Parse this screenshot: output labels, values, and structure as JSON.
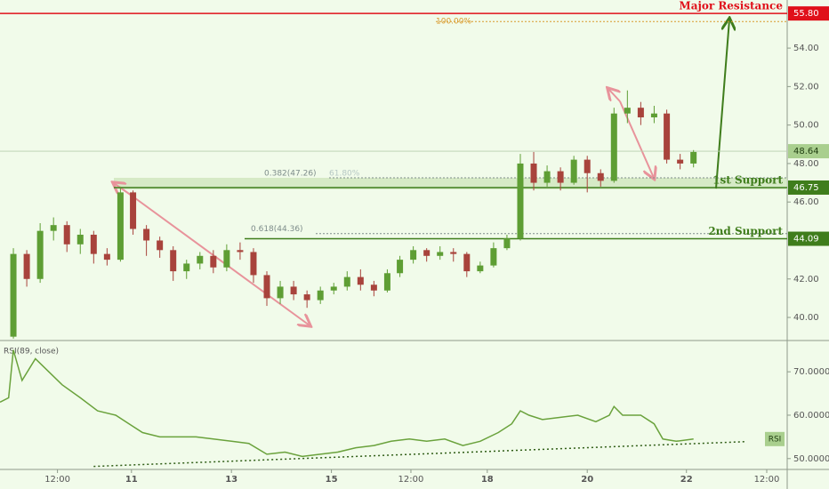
{
  "chart_data": {
    "type": "candlestick",
    "xlim": [
      0,
      100
    ],
    "xticks": [
      {
        "value": 7.3,
        "label": "12:00"
      },
      {
        "value": 16.7,
        "label": "11"
      },
      {
        "value": 29.4,
        "label": "13"
      },
      {
        "value": 42.1,
        "label": "15"
      },
      {
        "value": 52.2,
        "label": "12:00"
      },
      {
        "value": 61.9,
        "label": "18"
      },
      {
        "value": 74.6,
        "label": "20"
      },
      {
        "value": 87.2,
        "label": "22"
      },
      {
        "value": 97.4,
        "label": "12:00"
      }
    ],
    "ylim": [
      38.8,
      56.5
    ],
    "yticks": [
      {
        "value": 40,
        "label": "40.00"
      },
      {
        "value": 42,
        "label": "42.00"
      },
      {
        "value": 46,
        "label": "46.00"
      },
      {
        "value": 48,
        "label": "48.00"
      },
      {
        "value": 50,
        "label": "50.00"
      },
      {
        "value": 52,
        "label": "52.00"
      },
      {
        "value": 54,
        "label": "54.00"
      }
    ],
    "up_color": "#5e9e34",
    "down_color": "#a8433c",
    "candles": {
      "x": [
        1.7,
        3.4,
        5.1,
        6.8,
        8.5,
        10.2,
        11.9,
        13.6,
        15.3,
        16.9,
        18.6,
        20.3,
        22.0,
        23.7,
        25.4,
        27.1,
        28.8,
        30.5,
        32.2,
        33.9,
        35.6,
        37.3,
        39.0,
        40.7,
        42.4,
        44.1,
        45.8,
        47.5,
        49.2,
        50.8,
        52.5,
        54.2,
        55.9,
        57.6,
        59.3,
        61.0,
        62.7,
        64.4,
        66.1,
        67.8,
        69.5,
        71.2,
        72.9,
        74.6,
        76.3,
        78.0,
        79.7,
        81.4,
        83.1,
        84.7,
        86.4,
        88.1
      ],
      "open": [
        39.0,
        43.3,
        42.0,
        44.5,
        44.8,
        43.8,
        44.3,
        43.3,
        43.0,
        46.5,
        44.6,
        44.0,
        43.5,
        42.4,
        42.8,
        43.2,
        42.6,
        43.5,
        43.4,
        42.2,
        41.0,
        41.6,
        41.2,
        40.9,
        41.4,
        41.6,
        42.1,
        41.7,
        41.4,
        42.3,
        43.0,
        43.5,
        43.2,
        43.4,
        43.3,
        42.4,
        42.7,
        43.6,
        44.1,
        48.0,
        47.0,
        47.6,
        47.0,
        48.2,
        47.5,
        47.1,
        50.6,
        50.9,
        50.4,
        50.6,
        48.2,
        48.0
      ],
      "high": [
        43.6,
        43.5,
        44.9,
        45.2,
        45.0,
        44.6,
        44.5,
        43.6,
        46.8,
        46.6,
        44.8,
        44.2,
        43.7,
        43.0,
        43.4,
        43.5,
        43.8,
        43.9,
        43.6,
        42.4,
        41.9,
        41.9,
        41.4,
        41.6,
        41.8,
        42.4,
        42.5,
        41.9,
        42.5,
        43.2,
        43.7,
        43.6,
        43.7,
        43.6,
        43.4,
        42.9,
        43.9,
        44.3,
        48.5,
        48.6,
        47.9,
        47.8,
        48.4,
        48.4,
        47.7,
        50.9,
        51.8,
        51.2,
        51.0,
        50.8,
        48.5,
        48.7
      ],
      "low": [
        38.9,
        41.6,
        41.8,
        44.0,
        43.4,
        43.3,
        42.8,
        42.7,
        42.9,
        44.3,
        43.2,
        43.1,
        41.9,
        42.0,
        42.5,
        42.3,
        42.4,
        43.0,
        41.8,
        40.6,
        40.7,
        40.9,
        40.5,
        40.7,
        41.2,
        41.4,
        41.4,
        41.1,
        41.3,
        42.1,
        42.8,
        42.9,
        43.0,
        42.9,
        42.1,
        42.3,
        42.6,
        43.5,
        44.0,
        46.6,
        46.8,
        46.6,
        46.9,
        46.5,
        46.8,
        47.0,
        50.1,
        50.0,
        50.1,
        48.0,
        47.7,
        47.8
      ],
      "close": [
        43.3,
        42.0,
        44.5,
        44.8,
        43.8,
        44.3,
        43.3,
        43.0,
        46.5,
        44.6,
        44.0,
        43.5,
        42.4,
        42.8,
        43.2,
        42.6,
        43.5,
        43.4,
        42.2,
        41.0,
        41.6,
        41.2,
        40.9,
        41.4,
        41.6,
        42.1,
        41.7,
        41.4,
        42.3,
        43.0,
        43.5,
        43.2,
        43.4,
        43.3,
        42.4,
        42.7,
        43.6,
        44.1,
        48.0,
        47.0,
        47.6,
        47.0,
        48.2,
        47.5,
        47.1,
        50.6,
        50.9,
        50.4,
        50.6,
        48.2,
        48.0,
        48.6
      ]
    },
    "levels": [
      {
        "name": "Major Resistance",
        "value": 55.8,
        "label": "55.80",
        "color": "#e0101a"
      },
      {
        "name": "1st Support",
        "value": 46.75,
        "label": "46.75",
        "color": "#3f7d1c"
      },
      {
        "name": "2nd Support",
        "value": 44.09,
        "label": "44.09",
        "color": "#3f7d1c"
      }
    ],
    "current_price": {
      "value": 48.64,
      "label": "48.64",
      "color": "#a9cf8e"
    },
    "fib": [
      {
        "label": "100.00%",
        "price": 55.38,
        "color": "#d99a2b"
      },
      {
        "label": "0.382(47.26)",
        "price": 47.26,
        "color": "#7d8c8a"
      },
      {
        "label": "61.80%",
        "price": 47.26,
        "color": "#b6c8c4"
      },
      {
        "label": "0.618(44.36)",
        "price": 44.36,
        "color": "#7d8c8a"
      }
    ],
    "rsi": {
      "title": "RSI(89, close)",
      "badge": "RSI",
      "color": "#6aa23c",
      "y2lim": [
        47.5,
        77.2
      ],
      "y2ticks": [
        {
          "value": 50,
          "label": "50.0000"
        },
        {
          "value": 60,
          "label": "60.0000"
        },
        {
          "value": 70,
          "label": "70.0000"
        }
      ],
      "x": [
        0,
        1.1,
        1.7,
        2.8,
        4.5,
        6.2,
        7.9,
        10.2,
        12.4,
        14.7,
        16.4,
        18.1,
        20.3,
        22.6,
        24.9,
        27.1,
        29.4,
        31.6,
        33.9,
        36.2,
        38.4,
        40.7,
        42.9,
        45.2,
        47.5,
        49.7,
        52.0,
        54.2,
        56.5,
        58.8,
        61.0,
        63.3,
        65.0,
        66.1,
        67.2,
        68.9,
        71.2,
        73.4,
        75.7,
        77.4,
        78.0,
        79.1,
        81.4,
        83.1,
        84.2,
        85.9,
        88.1
      ],
      "values": [
        63,
        64,
        75,
        68,
        73,
        70,
        67,
        64,
        61,
        60,
        58,
        56,
        55,
        55,
        55,
        54.5,
        54,
        53.5,
        51,
        51.5,
        50.5,
        51,
        51.5,
        52.5,
        53,
        54,
        54.5,
        54,
        54.5,
        53,
        54,
        56,
        58,
        61,
        60,
        59,
        59.5,
        60,
        58.5,
        60,
        62,
        60,
        60,
        58,
        54.5,
        54,
        54.5
      ],
      "trend": {
        "x": [
          11.9,
          94.7
        ],
        "values": [
          48.2,
          53.9
        ]
      }
    }
  }
}
